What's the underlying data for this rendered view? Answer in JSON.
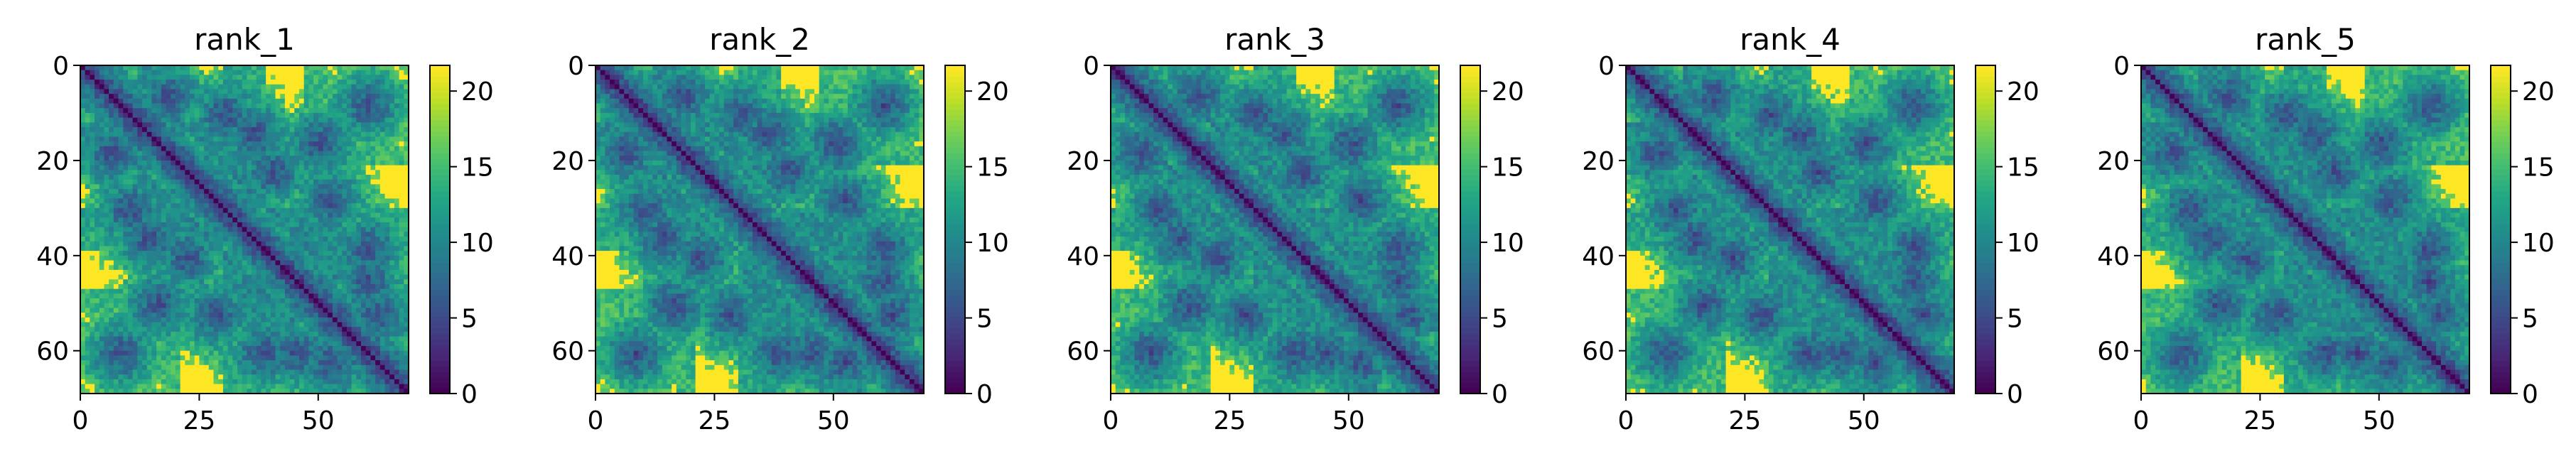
{
  "chart_data": [
    {
      "type": "heatmap",
      "title": "rank_1",
      "size": 69,
      "x_ticks": [
        0,
        25,
        50
      ],
      "y_ticks": [
        0,
        20,
        40,
        60
      ],
      "colorbar_ticks": [
        0,
        5,
        10,
        15,
        20
      ],
      "vmin": 0,
      "vmax": 21.7,
      "colormap": "viridis"
    },
    {
      "type": "heatmap",
      "title": "rank_2",
      "size": 69,
      "x_ticks": [
        0,
        25,
        50
      ],
      "y_ticks": [
        0,
        20,
        40,
        60
      ],
      "colorbar_ticks": [
        0,
        5,
        10,
        15,
        20
      ],
      "vmin": 0,
      "vmax": 21.7,
      "colormap": "viridis"
    },
    {
      "type": "heatmap",
      "title": "rank_3",
      "size": 69,
      "x_ticks": [
        0,
        25,
        50
      ],
      "y_ticks": [
        0,
        20,
        40,
        60
      ],
      "colorbar_ticks": [
        0,
        5,
        10,
        15,
        20
      ],
      "vmin": 0,
      "vmax": 21.7,
      "colormap": "viridis"
    },
    {
      "type": "heatmap",
      "title": "rank_4",
      "size": 69,
      "x_ticks": [
        0,
        25,
        50
      ],
      "y_ticks": [
        0,
        20,
        40,
        60
      ],
      "colorbar_ticks": [
        0,
        5,
        10,
        15,
        20
      ],
      "vmin": 0,
      "vmax": 21.7,
      "colormap": "viridis"
    },
    {
      "type": "heatmap",
      "title": "rank_5",
      "size": 69,
      "x_ticks": [
        0,
        25,
        50
      ],
      "y_ticks": [
        0,
        20,
        40,
        60
      ],
      "colorbar_ticks": [
        0,
        5,
        10,
        15,
        20
      ],
      "vmin": 0,
      "vmax": 21.7,
      "colormap": "viridis"
    }
  ]
}
